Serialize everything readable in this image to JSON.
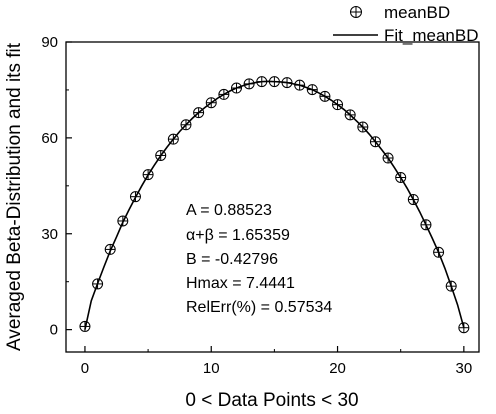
{
  "chart_data": {
    "type": "scatter",
    "xlabel": "0 < Data Points < 30",
    "ylabel": "Averaged Beta-Distribution and its fit",
    "xlim": [
      -1.5,
      31.2
    ],
    "ylim": [
      -7,
      90
    ],
    "x_ticks": [
      0,
      10,
      20,
      30
    ],
    "y_ticks": [
      0,
      30,
      60,
      90
    ],
    "grid": false,
    "legend_position": "top-right",
    "series": [
      {
        "name": "meanBD",
        "marker": "circle-cross",
        "x": [
          0,
          1,
          2,
          3,
          4,
          5,
          6,
          7,
          8,
          9,
          10,
          11,
          12,
          13,
          14,
          15,
          16,
          17,
          18,
          19,
          20,
          21,
          22,
          23,
          24,
          25,
          26,
          27,
          28,
          29,
          30
        ],
        "y": [
          1.0,
          14.3,
          25.1,
          34.0,
          41.6,
          48.5,
          54.5,
          59.6,
          64.1,
          67.9,
          71.0,
          73.6,
          75.6,
          76.9,
          77.6,
          77.6,
          77.3,
          76.5,
          75.1,
          73.0,
          70.4,
          67.2,
          63.4,
          58.8,
          53.7,
          47.6,
          40.7,
          32.8,
          24.2,
          13.6,
          0.6
        ]
      },
      {
        "name": "Fit_meanBD",
        "style": "line",
        "x": [
          0,
          0.5,
          1,
          1.5,
          2,
          2.5,
          3,
          3.5,
          4,
          4.5,
          5,
          5.5,
          6,
          6.5,
          7,
          7.5,
          8,
          8.5,
          9,
          9.5,
          10,
          10.5,
          11,
          11.5,
          12,
          12.5,
          13,
          13.5,
          14,
          14.5,
          15,
          15.5,
          16,
          16.5,
          17,
          17.5,
          18,
          18.5,
          19,
          19.5,
          20,
          20.5,
          21,
          21.5,
          22,
          22.5,
          23,
          23.5,
          24,
          24.5,
          25,
          25.5,
          26,
          26.5,
          27,
          27.5,
          28,
          28.5,
          29,
          29.5,
          30
        ],
        "y": [
          0.0,
          9.0,
          14.4,
          19.6,
          24.6,
          29.0,
          33.6,
          37.6,
          41.4,
          45.0,
          48.4,
          51.5,
          54.4,
          57.1,
          59.6,
          62.0,
          64.1,
          66.1,
          67.9,
          69.5,
          71.0,
          72.4,
          73.6,
          74.7,
          75.6,
          76.3,
          76.9,
          77.3,
          77.6,
          77.7,
          77.6,
          77.5,
          77.3,
          76.9,
          76.5,
          75.8,
          75.1,
          74.1,
          73.0,
          71.8,
          70.4,
          68.9,
          67.2,
          65.3,
          63.4,
          61.2,
          58.8,
          56.3,
          53.7,
          50.7,
          47.6,
          44.3,
          40.7,
          36.9,
          32.8,
          28.6,
          24.2,
          19.2,
          13.6,
          7.8,
          0.6
        ]
      }
    ],
    "annotations": [
      "A = 0.88523",
      "α+β = 1.65359",
      "B = -0.42796",
      "Hmax = 7.4441",
      "RelErr(%) = 0.57534"
    ]
  }
}
